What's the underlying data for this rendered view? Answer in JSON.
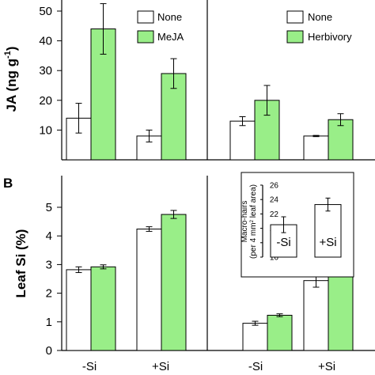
{
  "figure": {
    "panel_b_label": "B",
    "colors": {
      "control": "#ffffff",
      "treated": "#99ee88"
    }
  },
  "chart_data": [
    {
      "type": "bar",
      "panel": "A-left",
      "categories": [
        "-Si",
        "+Si"
      ],
      "ylabel_main": "JA (ng g",
      "ylabel_sup": "-1",
      "ylabel_end": ")",
      "ylim": [
        0,
        50
      ],
      "yticks": [
        10,
        20,
        30,
        40,
        50
      ],
      "legend": [
        "None",
        "MeJA"
      ],
      "series": [
        {
          "name": "None",
          "values": [
            14,
            8
          ],
          "errors": [
            5,
            2
          ]
        },
        {
          "name": "MeJA",
          "values": [
            44,
            29
          ],
          "errors": [
            8.5,
            5
          ]
        }
      ]
    },
    {
      "type": "bar",
      "panel": "A-right",
      "categories": [
        "-Si",
        "+Si"
      ],
      "ylim": [
        0,
        50
      ],
      "legend": [
        "None",
        "Herbivory"
      ],
      "series": [
        {
          "name": "None",
          "values": [
            13,
            8
          ],
          "errors": [
            1.5,
            0.2
          ]
        },
        {
          "name": "Herbivory",
          "values": [
            20,
            13.5
          ],
          "errors": [
            5,
            2
          ]
        }
      ]
    },
    {
      "type": "bar",
      "panel": "B-left",
      "categories": [
        "-Si",
        "+Si"
      ],
      "xlabels": [
        "-Si",
        "+Si"
      ],
      "ylabel": "Leaf Si (%)",
      "ylim": [
        0,
        5.5
      ],
      "yticks": [
        0,
        1,
        2,
        3,
        4,
        5
      ],
      "series": [
        {
          "name": "None",
          "values": [
            2.82,
            4.24
          ],
          "errors": [
            0.1,
            0.08
          ]
        },
        {
          "name": "MeJA",
          "values": [
            2.92,
            4.75
          ],
          "errors": [
            0.07,
            0.14
          ]
        }
      ]
    },
    {
      "type": "bar",
      "panel": "B-right",
      "categories": [
        "-Si",
        "+Si"
      ],
      "xlabels": [
        "-Si",
        "+Si"
      ],
      "ylim": [
        0,
        5.5
      ],
      "series": [
        {
          "name": "None",
          "values": [
            0.95,
            2.44
          ],
          "errors": [
            0.07,
            0.23
          ]
        },
        {
          "name": "Herbivory",
          "values": [
            1.23,
            2.85
          ],
          "errors": [
            0.05,
            0.15
          ]
        }
      ]
    },
    {
      "type": "bar",
      "panel": "B-inset",
      "categories": [
        "-Si",
        "+Si"
      ],
      "bar_labels": [
        "-Si",
        "+Si"
      ],
      "ylabel_line1": "Macro-hairs",
      "ylabel_line2_a": "(per 4 mm",
      "ylabel_line2_sup": "2",
      "ylabel_line2_b": " leaf area)",
      "ylim": [
        16,
        26
      ],
      "yticks": [
        16,
        18,
        20,
        22,
        24,
        26
      ],
      "values": [
        20.5,
        23.3
      ],
      "errors": [
        1.1,
        0.9
      ]
    }
  ]
}
